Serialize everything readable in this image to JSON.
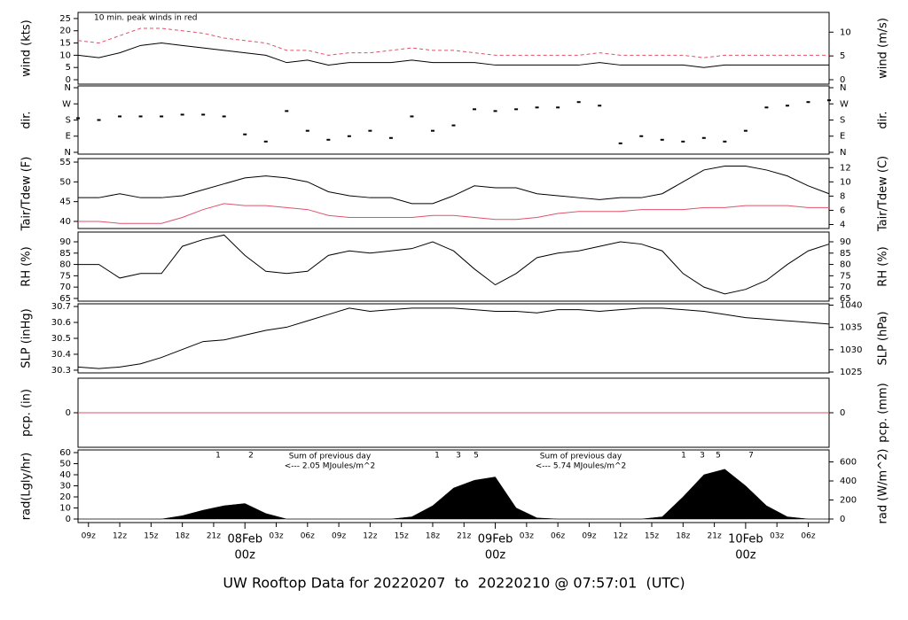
{
  "chart_data": [
    {
      "type": "line",
      "ylabel": "wind (kts)",
      "y2label": "wind (m/s)",
      "annotation": "10 min. peak winds in red",
      "annotation_color": "#df536b",
      "xlim": [
        -16,
        56
      ],
      "ylim": [
        -1.8,
        27.5
      ],
      "yticks": [
        0,
        5,
        10,
        15,
        20,
        25
      ],
      "y2lim": [
        -0.93,
        14.15
      ],
      "y2ticks": [
        0,
        5,
        10
      ],
      "x": [
        -16,
        -14,
        -12,
        -10,
        -8,
        -6,
        -4,
        -2,
        0,
        2,
        4,
        6,
        8,
        10,
        12,
        14,
        16,
        18,
        20,
        22,
        24,
        26,
        28,
        30,
        32,
        34,
        36,
        38,
        40,
        42,
        44,
        46,
        48,
        50,
        52,
        54,
        56
      ],
      "series": [
        {
          "name": "wind",
          "color": "#000000",
          "values": [
            10,
            9,
            11,
            14,
            15,
            14,
            13,
            12,
            11,
            10,
            7,
            8,
            6,
            7,
            7,
            7,
            8,
            7,
            7,
            7,
            6,
            6,
            6,
            6,
            6,
            7,
            6,
            6,
            6,
            6,
            5,
            6,
            6,
            6,
            6,
            6,
            6
          ]
        },
        {
          "name": "peak wind",
          "color": "#df536b",
          "dashed": true,
          "values": [
            16,
            15,
            18,
            21,
            21,
            20,
            19,
            17,
            16,
            15,
            12,
            12,
            10,
            11,
            11,
            12,
            13,
            12,
            12,
            11,
            10,
            10,
            10,
            10,
            10,
            11,
            10,
            10,
            10,
            10,
            9,
            10,
            10,
            10,
            10,
            10,
            10
          ]
        }
      ]
    },
    {
      "type": "scatter",
      "ylabel": "dir.",
      "y2label": "dir.",
      "xlim": [
        -16,
        56
      ],
      "ylim": [
        -10,
        370
      ],
      "yticks": [
        {
          "value": 0,
          "label": "N"
        },
        {
          "value": 90,
          "label": "E"
        },
        {
          "value": 180,
          "label": "S"
        },
        {
          "value": 270,
          "label": "W"
        },
        {
          "value": 360,
          "label": "N"
        }
      ],
      "y2lim": [
        -10,
        370
      ],
      "y2ticks": [
        {
          "value": 0,
          "label": "N"
        },
        {
          "value": 90,
          "label": "E"
        },
        {
          "value": 180,
          "label": "S"
        },
        {
          "value": 270,
          "label": "W"
        },
        {
          "value": 360,
          "label": "N"
        }
      ],
      "x": [
        -16,
        -14,
        -12,
        -10,
        -8,
        -6,
        -4,
        -2,
        0,
        2,
        4,
        6,
        8,
        10,
        12,
        14,
        16,
        18,
        20,
        22,
        24,
        26,
        28,
        30,
        32,
        34,
        36,
        38,
        40,
        42,
        44,
        46,
        48,
        50,
        52,
        54,
        56
      ],
      "series": [
        {
          "name": "direction",
          "color": "#000000",
          "values": [
            190,
            180,
            200,
            200,
            200,
            210,
            210,
            200,
            100,
            60,
            230,
            120,
            70,
            90,
            120,
            80,
            200,
            120,
            150,
            240,
            230,
            240,
            250,
            250,
            280,
            260,
            50,
            90,
            70,
            60,
            80,
            60,
            120,
            250,
            260,
            280,
            290
          ]
        }
      ]
    },
    {
      "type": "line",
      "ylabel": "Tair/Tdew (F)",
      "y2label": "Tair/Tdew (C)",
      "xlim": [
        -16,
        56
      ],
      "ylim": [
        38.2,
        55.9
      ],
      "yticks": [
        40,
        45,
        50,
        55
      ],
      "y2lim": [
        3.44,
        13.28
      ],
      "y2ticks": [
        4,
        6,
        8,
        10,
        12
      ],
      "x": [
        -16,
        -14,
        -12,
        -10,
        -8,
        -6,
        -4,
        -2,
        0,
        2,
        4,
        6,
        8,
        10,
        12,
        14,
        16,
        18,
        20,
        22,
        24,
        26,
        28,
        30,
        32,
        34,
        36,
        38,
        40,
        42,
        44,
        46,
        48,
        50,
        52,
        54,
        56
      ],
      "series": [
        {
          "name": "Tair",
          "color": "#000000",
          "values": [
            46,
            46,
            47,
            46,
            46,
            46.5,
            48,
            49.5,
            51,
            51.5,
            51,
            50,
            47.5,
            46.5,
            46,
            46,
            44.5,
            44.5,
            46.5,
            49,
            48.5,
            48.5,
            47,
            46.5,
            46,
            45.5,
            46,
            46,
            47,
            50,
            53,
            54,
            54,
            53,
            51.5,
            49,
            47
          ]
        },
        {
          "name": "Tdew",
          "color": "#df536b",
          "values": [
            40,
            40,
            39.5,
            39.5,
            39.5,
            41,
            43,
            44.5,
            44,
            44,
            43.5,
            43,
            41.5,
            41,
            41,
            41,
            41,
            41.5,
            41.5,
            41,
            40.5,
            40.5,
            41,
            42,
            42.5,
            42.5,
            42.5,
            43,
            43,
            43,
            43.5,
            43.5,
            44,
            44,
            44,
            43.5,
            43.5
          ]
        }
      ]
    },
    {
      "type": "line",
      "ylabel": "RH (%)",
      "y2label": "RH (%)",
      "xlim": [
        -16,
        56
      ],
      "ylim": [
        63.8,
        94.3
      ],
      "yticks": [
        65,
        70,
        75,
        80,
        85,
        90
      ],
      "y2lim": [
        63.8,
        94.3
      ],
      "y2ticks": [
        65,
        70,
        75,
        80,
        85,
        90
      ],
      "x": [
        -16,
        -14,
        -12,
        -10,
        -8,
        -6,
        -4,
        -2,
        0,
        2,
        4,
        6,
        8,
        10,
        12,
        14,
        16,
        18,
        20,
        22,
        24,
        26,
        28,
        30,
        32,
        34,
        36,
        38,
        40,
        42,
        44,
        46,
        48,
        50,
        52,
        54,
        56
      ],
      "series": [
        {
          "name": "RH",
          "color": "#000000",
          "values": [
            80,
            80,
            74,
            76,
            76,
            88,
            91,
            93,
            84,
            77,
            76,
            77,
            84,
            86,
            85,
            86,
            87,
            90,
            86,
            78,
            71,
            76,
            83,
            85,
            86,
            88,
            90,
            89,
            86,
            76,
            70,
            67,
            69,
            73,
            80,
            86,
            89
          ]
        }
      ]
    },
    {
      "type": "line",
      "ylabel": "SLP (inHg)",
      "y2label": "SLP (hPa)",
      "xlim": [
        -16,
        56
      ],
      "ylim": [
        30.283,
        30.717
      ],
      "yticks": [
        30.3,
        30.4,
        30.5,
        30.6,
        30.7
      ],
      "y2lim": [
        1024.8,
        1040.3
      ],
      "y2ticks": [
        1025,
        1030,
        1035,
        1040
      ],
      "x": [
        -16,
        -14,
        -12,
        -10,
        -8,
        -6,
        -4,
        -2,
        0,
        2,
        4,
        6,
        8,
        10,
        12,
        14,
        16,
        18,
        20,
        22,
        24,
        26,
        28,
        30,
        32,
        34,
        36,
        38,
        40,
        42,
        44,
        46,
        48,
        50,
        52,
        54,
        56
      ],
      "series": [
        {
          "name": "SLP",
          "color": "#000000",
          "values": [
            30.32,
            30.31,
            30.32,
            30.34,
            30.38,
            30.43,
            30.48,
            30.49,
            30.52,
            30.55,
            30.57,
            30.61,
            30.65,
            30.69,
            30.67,
            30.68,
            30.69,
            30.69,
            30.69,
            30.68,
            30.67,
            30.67,
            30.66,
            30.68,
            30.68,
            30.67,
            30.68,
            30.69,
            30.69,
            30.68,
            30.67,
            30.65,
            30.63,
            30.62,
            30.61,
            30.6,
            30.59
          ]
        }
      ]
    },
    {
      "type": "line",
      "ylabel": "pcp. (in)",
      "y2label": "pcp. (mm)",
      "xlim": [
        -16,
        56
      ],
      "ylim": [
        -0.1,
        0.1
      ],
      "yticks": [
        0
      ],
      "y2lim": [
        -2.54,
        2.54
      ],
      "y2ticks": [
        0
      ],
      "x": [
        -16,
        56
      ],
      "series": [
        {
          "name": "precipitation",
          "color": "#df536b",
          "values": [
            0,
            0
          ]
        }
      ]
    },
    {
      "type": "area",
      "ylabel": "rad(Lgly/hr)",
      "y2label": "rad (W/m^2)",
      "xlim": [
        -16,
        56
      ],
      "ylim": [
        -3.2,
        62.4
      ],
      "yticks": [
        0,
        10,
        20,
        30,
        40,
        50,
        60
      ],
      "y2lim": [
        -37.2,
        725.7
      ],
      "y2ticks": [
        0,
        200,
        400,
        600
      ],
      "annotations": [
        "1",
        "2",
        "Sum of previous day",
        "<--- 2.05 MJoules/m^2",
        "1",
        "3",
        "5",
        "Sum of previous day",
        "<--- 5.74 MJoules/m^2",
        "1",
        "3",
        "5",
        "7"
      ],
      "annotation_color": "#9b30d9",
      "x": [
        -16,
        -14,
        -12,
        -10,
        -8,
        -6,
        -4,
        -2,
        0,
        2,
        4,
        6,
        8,
        10,
        12,
        14,
        16,
        18,
        20,
        22,
        24,
        26,
        28,
        30,
        32,
        34,
        36,
        38,
        40,
        42,
        44,
        46,
        48,
        50,
        52,
        54,
        56
      ],
      "series": [
        {
          "name": "radiation",
          "color": "#000000",
          "values": [
            0,
            0,
            0,
            0,
            0,
            3,
            8,
            12,
            14,
            5,
            0,
            0,
            0,
            0,
            0,
            0,
            2,
            12,
            28,
            35,
            38,
            10,
            1,
            0,
            0,
            0,
            0,
            0,
            2,
            20,
            40,
            45,
            30,
            12,
            2,
            0,
            0
          ]
        }
      ],
      "xticks": [
        {
          "value": -15,
          "label": "09z"
        },
        {
          "value": -12,
          "label": "12z"
        },
        {
          "value": -9,
          "label": "15z"
        },
        {
          "value": -6,
          "label": "18z"
        },
        {
          "value": -3,
          "label": "21z"
        },
        {
          "value": 3,
          "label": "03z"
        },
        {
          "value": 6,
          "label": "06z"
        },
        {
          "value": 9,
          "label": "09z"
        },
        {
          "value": 12,
          "label": "12z"
        },
        {
          "value": 15,
          "label": "15z"
        },
        {
          "value": 18,
          "label": "18z"
        },
        {
          "value": 21,
          "label": "21z"
        },
        {
          "value": 27,
          "label": "03z"
        },
        {
          "value": 30,
          "label": "06z"
        },
        {
          "value": 33,
          "label": "09z"
        },
        {
          "value": 36,
          "label": "12z"
        },
        {
          "value": 39,
          "label": "15z"
        },
        {
          "value": 42,
          "label": "18z"
        },
        {
          "value": 45,
          "label": "21z"
        },
        {
          "value": 51,
          "label": "03z"
        },
        {
          "value": 54,
          "label": "06z"
        }
      ],
      "date_ticks": [
        {
          "value": 0,
          "label": "08Feb",
          "sublabel": "00z"
        },
        {
          "value": 24,
          "label": "09Feb",
          "sublabel": "00z"
        },
        {
          "value": 48,
          "label": "10Feb",
          "sublabel": "00z"
        }
      ],
      "date_color": "#df536b",
      "footer": "UW Rooftop Data for 20220207  to  20220210 @ 07:57:01  (UTC)",
      "footer_color": "#2b8fd8"
    }
  ]
}
